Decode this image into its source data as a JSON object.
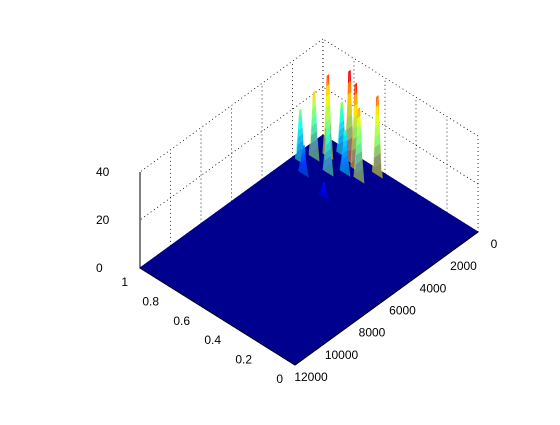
{
  "chart_data": {
    "type": "surface",
    "title": "",
    "xlabel": "",
    "ylabel": "",
    "zlabel": "",
    "grid": true,
    "colormap": "jet",
    "x_axis": {
      "range": [
        0,
        12000
      ],
      "ticks": [
        "0",
        "2000",
        "4000",
        "6000",
        "8000",
        "10000",
        "12000"
      ]
    },
    "y_axis": {
      "range": [
        0,
        1
      ],
      "ticks": [
        "0",
        "0.2",
        "0.4",
        "0.6",
        "0.8",
        "1"
      ]
    },
    "z_axis": {
      "range": [
        0,
        40
      ],
      "ticks": [
        "0",
        "20",
        "40"
      ]
    },
    "peaks": [
      {
        "x": 300,
        "y": 0.62,
        "z": 33
      },
      {
        "x": 500,
        "y": 0.78,
        "z": 38
      },
      {
        "x": 700,
        "y": 0.72,
        "z": 36
      },
      {
        "x": 900,
        "y": 0.88,
        "z": 34
      },
      {
        "x": 1100,
        "y": 0.66,
        "z": 30
      },
      {
        "x": 1400,
        "y": 0.92,
        "z": 28
      },
      {
        "x": 1700,
        "y": 0.8,
        "z": 25
      },
      {
        "x": 2000,
        "y": 0.95,
        "z": 22
      },
      {
        "x": 400,
        "y": 0.84,
        "z": 22
      },
      {
        "x": 1200,
        "y": 0.74,
        "z": 18
      },
      {
        "x": 2500,
        "y": 0.88,
        "z": 12
      },
      {
        "x": 3000,
        "y": 0.7,
        "z": 6
      }
    ]
  },
  "colors": {
    "surface_base": "#00008f",
    "grid": "#000000"
  }
}
